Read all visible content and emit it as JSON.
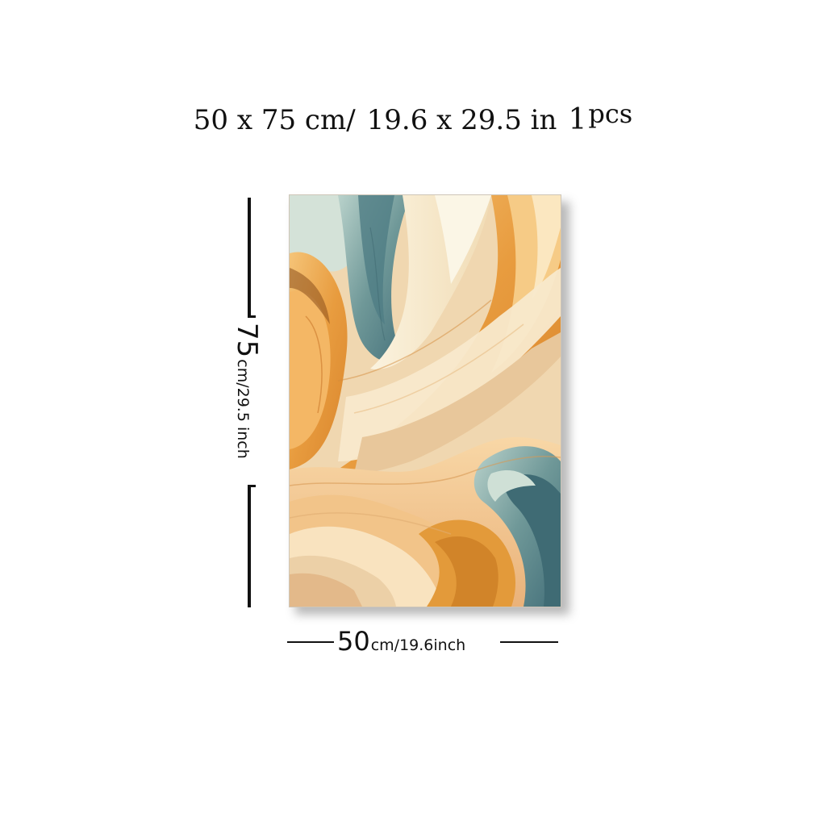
{
  "headline": {
    "size_cm": "50 x 75 cm/",
    "size_in": "19.6 x 29.5 in",
    "quantity_number": "1",
    "quantity_unit": "pcs"
  },
  "height_dimension": {
    "value": "75",
    "unit_text": "cm/29.5 inch"
  },
  "width_dimension": {
    "value": "50",
    "unit_text": "cm/19.6inch"
  },
  "artwork": {
    "subject": "abstract flowing wave layers",
    "colors": {
      "orange": "#e9a24b",
      "light_orange": "#f3c47d",
      "cream": "#f7ecd2",
      "beige": "#e9d2b0",
      "teal": "#5f8c8e",
      "light_teal": "#a9c6c3",
      "mint": "#cfe0d6"
    }
  }
}
